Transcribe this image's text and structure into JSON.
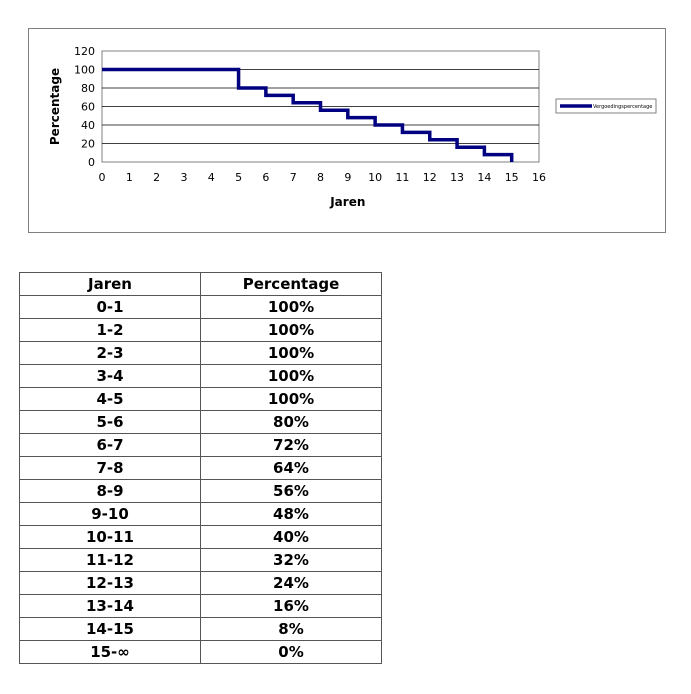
{
  "chart_data": {
    "type": "line",
    "title": "",
    "xlabel": "Jaren",
    "ylabel": "Percentage",
    "xlim": [
      0,
      16
    ],
    "ylim": [
      0,
      120
    ],
    "xticks": [
      "0",
      "1",
      "2",
      "3",
      "4",
      "5",
      "6",
      "7",
      "8",
      "9",
      "10",
      "11",
      "12",
      "13",
      "14",
      "15",
      "16"
    ],
    "yticks": [
      "0",
      "20",
      "40",
      "60",
      "80",
      "100",
      "120"
    ],
    "grid": "horizontal",
    "legend": "right",
    "series_color": "#000080",
    "series": [
      {
        "name": "Vergoedingspercentage",
        "step": true,
        "x": [
          0,
          5,
          5,
          6,
          6,
          7,
          7,
          8,
          8,
          9,
          9,
          10,
          10,
          11,
          11,
          12,
          12,
          13,
          13,
          14,
          14,
          15,
          15
        ],
        "y": [
          100,
          100,
          80,
          80,
          72,
          72,
          64,
          64,
          56,
          56,
          48,
          48,
          40,
          40,
          32,
          32,
          24,
          24,
          16,
          16,
          8,
          8,
          0
        ]
      }
    ]
  },
  "table": {
    "headers": [
      "Jaren",
      "Percentage"
    ],
    "rows": [
      [
        "0-1",
        "100%"
      ],
      [
        "1-2",
        "100%"
      ],
      [
        "2-3",
        "100%"
      ],
      [
        "3-4",
        "100%"
      ],
      [
        "4-5",
        "100%"
      ],
      [
        "5-6",
        "80%"
      ],
      [
        "6-7",
        "72%"
      ],
      [
        "7-8",
        "64%"
      ],
      [
        "8-9",
        "56%"
      ],
      [
        "9-10",
        "48%"
      ],
      [
        "10-11",
        "40%"
      ],
      [
        "11-12",
        "32%"
      ],
      [
        "12-13",
        "24%"
      ],
      [
        "13-14",
        "16%"
      ],
      [
        "14-15",
        "8%"
      ],
      [
        "15-∞",
        "0%"
      ]
    ]
  }
}
